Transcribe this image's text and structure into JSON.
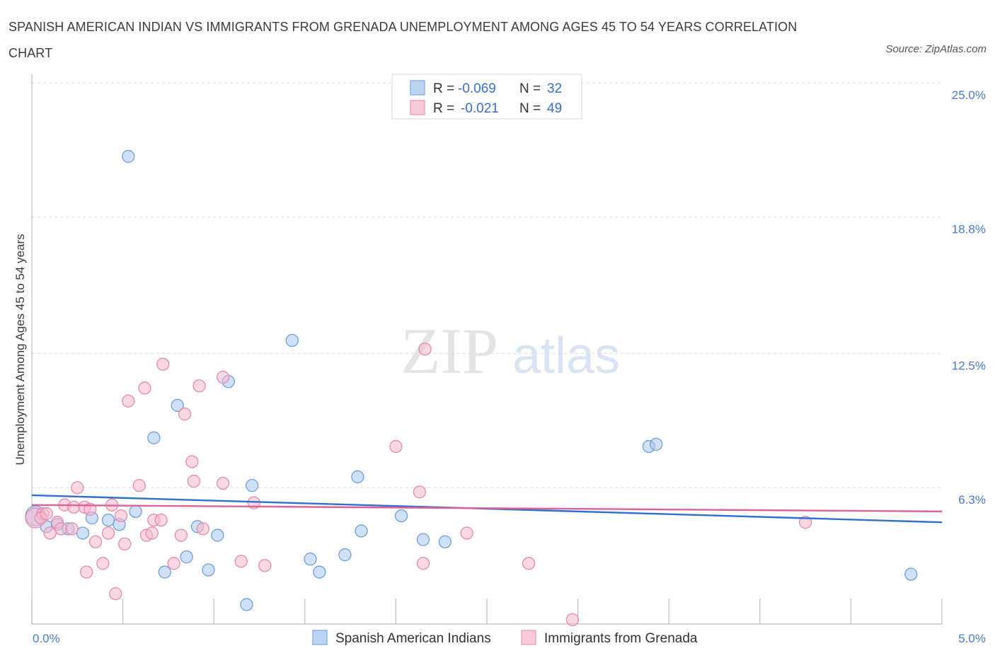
{
  "title": "SPANISH AMERICAN INDIAN VS IMMIGRANTS FROM GRENADA UNEMPLOYMENT AMONG AGES 45 TO 54 YEARS CORRELATION CHART",
  "source": "Source: ZipAtlas.com",
  "watermark": {
    "zip": "ZIP",
    "atlas": "atlas"
  },
  "colors": {
    "blue_fill": "#aac8f0",
    "blue_stroke": "#6f9fdc",
    "blue_line": "#2f6fcf",
    "pink_fill": "#f6b8cc",
    "pink_stroke": "#e88aab",
    "pink_line": "#e0609a",
    "tick_text": "#4a7bd0",
    "grid": "#dddddd"
  },
  "legend": {
    "row1": {
      "r_label": "R = ",
      "r_value": "-0.069",
      "n_label": "N = ",
      "n_value": "32"
    },
    "row2": {
      "r_label": "R = ",
      "r_value": "-0.021",
      "n_label": "N = ",
      "n_value": "49"
    }
  },
  "chart_data": {
    "type": "scatter",
    "xlabel": "",
    "ylabel": "Unemployment Among Ages 45 to 54 years",
    "xlim": [
      0,
      5
    ],
    "ylim": [
      0,
      25
    ],
    "x_tick_labels": {
      "left": "0.0%",
      "right": "5.0%"
    },
    "y_ticks": [
      {
        "value": 6.3,
        "label": "6.3%"
      },
      {
        "value": 12.5,
        "label": "12.5%"
      },
      {
        "value": 18.8,
        "label": "18.8%"
      },
      {
        "value": 25.0,
        "label": "25.0%"
      }
    ],
    "series": [
      {
        "name": "Spanish American Indians",
        "color_key": "blue",
        "trend": {
          "x0": 0,
          "y0": 5.95,
          "x1": 5,
          "y1": 4.7
        },
        "points": [
          {
            "x": 0.02,
            "y": 5.0
          },
          {
            "x": 0.08,
            "y": 4.5
          },
          {
            "x": 0.14,
            "y": 4.6
          },
          {
            "x": 0.2,
            "y": 4.4
          },
          {
            "x": 0.28,
            "y": 4.2
          },
          {
            "x": 0.33,
            "y": 4.9
          },
          {
            "x": 0.42,
            "y": 4.8
          },
          {
            "x": 0.48,
            "y": 4.6
          },
          {
            "x": 0.53,
            "y": 21.6
          },
          {
            "x": 0.57,
            "y": 5.2
          },
          {
            "x": 0.67,
            "y": 8.6
          },
          {
            "x": 0.73,
            "y": 2.4
          },
          {
            "x": 0.8,
            "y": 10.1
          },
          {
            "x": 0.85,
            "y": 3.1
          },
          {
            "x": 0.91,
            "y": 4.5
          },
          {
            "x": 0.97,
            "y": 2.5
          },
          {
            "x": 1.02,
            "y": 4.1
          },
          {
            "x": 1.08,
            "y": 11.2
          },
          {
            "x": 1.18,
            "y": 0.9
          },
          {
            "x": 1.21,
            "y": 6.4
          },
          {
            "x": 1.43,
            "y": 13.1
          },
          {
            "x": 1.53,
            "y": 3.0
          },
          {
            "x": 1.58,
            "y": 2.4
          },
          {
            "x": 1.72,
            "y": 3.2
          },
          {
            "x": 1.79,
            "y": 6.8
          },
          {
            "x": 1.81,
            "y": 4.3
          },
          {
            "x": 2.03,
            "y": 5.0
          },
          {
            "x": 2.15,
            "y": 3.9
          },
          {
            "x": 2.27,
            "y": 3.8
          },
          {
            "x": 3.39,
            "y": 8.2
          },
          {
            "x": 3.43,
            "y": 8.3
          },
          {
            "x": 4.83,
            "y": 2.3
          }
        ]
      },
      {
        "name": "Immigrants from Grenada",
        "color_key": "pink",
        "trend": {
          "x0": 0,
          "y0": 5.5,
          "x1": 5,
          "y1": 5.2
        },
        "points": [
          {
            "x": 0.02,
            "y": 4.9
          },
          {
            "x": 0.06,
            "y": 5.1
          },
          {
            "x": 0.1,
            "y": 4.2
          },
          {
            "x": 0.14,
            "y": 4.7
          },
          {
            "x": 0.16,
            "y": 4.4
          },
          {
            "x": 0.18,
            "y": 5.5
          },
          {
            "x": 0.22,
            "y": 4.4
          },
          {
            "x": 0.23,
            "y": 5.4
          },
          {
            "x": 0.25,
            "y": 6.3
          },
          {
            "x": 0.29,
            "y": 5.4
          },
          {
            "x": 0.3,
            "y": 2.4
          },
          {
            "x": 0.32,
            "y": 5.3
          },
          {
            "x": 0.35,
            "y": 3.8
          },
          {
            "x": 0.39,
            "y": 2.8
          },
          {
            "x": 0.42,
            "y": 4.2
          },
          {
            "x": 0.44,
            "y": 5.5
          },
          {
            "x": 0.46,
            "y": 1.4
          },
          {
            "x": 0.49,
            "y": 5.0
          },
          {
            "x": 0.51,
            "y": 3.7
          },
          {
            "x": 0.53,
            "y": 10.3
          },
          {
            "x": 0.59,
            "y": 6.4
          },
          {
            "x": 0.62,
            "y": 10.9
          },
          {
            "x": 0.63,
            "y": 4.1
          },
          {
            "x": 0.66,
            "y": 4.2
          },
          {
            "x": 0.67,
            "y": 4.8
          },
          {
            "x": 0.71,
            "y": 4.8
          },
          {
            "x": 0.72,
            "y": 12.0
          },
          {
            "x": 0.78,
            "y": 2.8
          },
          {
            "x": 0.82,
            "y": 4.1
          },
          {
            "x": 0.84,
            "y": 9.7
          },
          {
            "x": 0.88,
            "y": 7.5
          },
          {
            "x": 0.89,
            "y": 6.6
          },
          {
            "x": 0.92,
            "y": 11.0
          },
          {
            "x": 0.94,
            "y": 4.4
          },
          {
            "x": 1.05,
            "y": 11.4
          },
          {
            "x": 1.05,
            "y": 6.5
          },
          {
            "x": 1.15,
            "y": 2.9
          },
          {
            "x": 1.22,
            "y": 5.6
          },
          {
            "x": 1.28,
            "y": 2.7
          },
          {
            "x": 2.0,
            "y": 8.2
          },
          {
            "x": 2.13,
            "y": 6.1
          },
          {
            "x": 2.15,
            "y": 2.8
          },
          {
            "x": 2.16,
            "y": 12.7
          },
          {
            "x": 2.39,
            "y": 4.2
          },
          {
            "x": 2.73,
            "y": 2.8
          },
          {
            "x": 2.97,
            "y": 0.2
          },
          {
            "x": 4.25,
            "y": 4.7
          },
          {
            "x": 0.05,
            "y": 4.9
          },
          {
            "x": 0.08,
            "y": 5.1
          }
        ]
      }
    ],
    "legend_position": "top-center",
    "bottom_legend": [
      "Spanish American Indians",
      "Immigrants from Grenada"
    ]
  }
}
